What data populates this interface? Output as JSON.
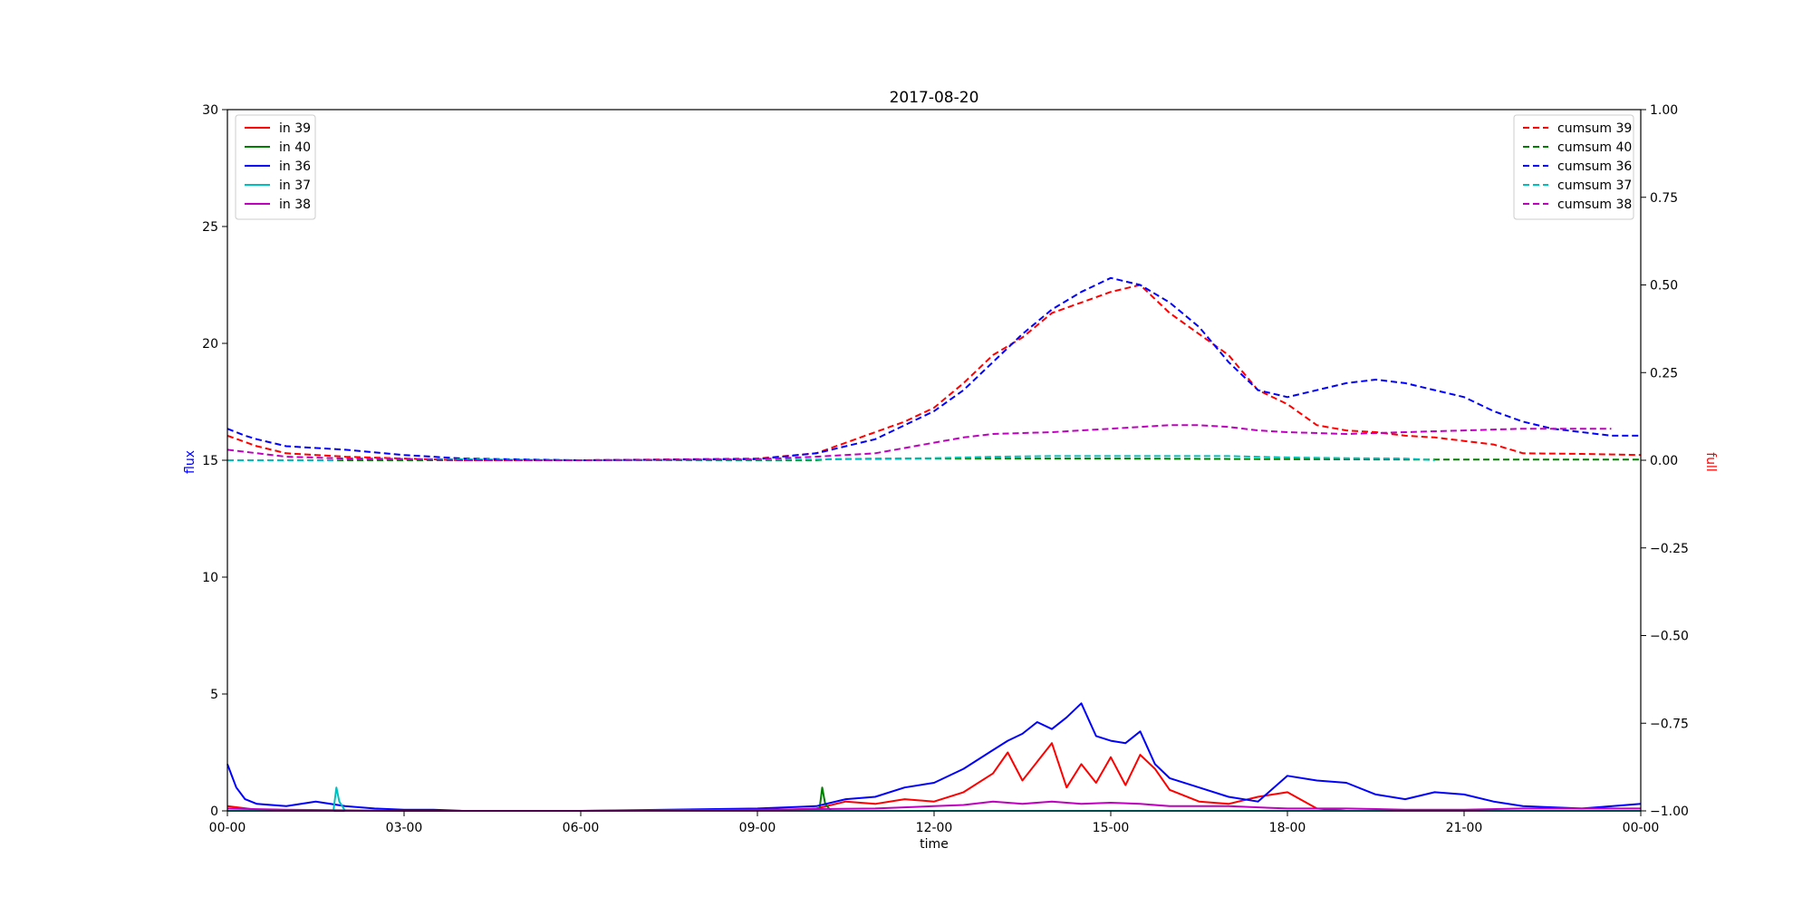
{
  "chart_data": {
    "type": "line",
    "title": "2017-08-20",
    "xlabel": "time",
    "ylabel_left": "flux",
    "ylabel_right": "full",
    "ylabel_left_color": "#0000ff",
    "ylabel_right_color": "#ff0000",
    "ylim_left": [
      0,
      30
    ],
    "ylim_right": [
      -1.0,
      1.0
    ],
    "x_tick_labels": [
      "00-00",
      "03-00",
      "06-00",
      "09-00",
      "12-00",
      "15-00",
      "18-00",
      "21-00",
      "00-00"
    ],
    "y_left_tick_labels": [
      "0",
      "5",
      "10",
      "15",
      "20",
      "25",
      "30"
    ],
    "y_right_tick_labels": [
      "−1.00",
      "−0.75",
      "−0.50",
      "−0.25",
      "0.00",
      "0.25",
      "0.50",
      "0.75",
      "1.00"
    ],
    "grid": false,
    "legend_left_placement": "upper-left",
    "legend_right_placement": "upper-right",
    "x_unit": "hours",
    "series_left_axis": [
      {
        "name": "in 39",
        "color": "#ff0000",
        "style": "solid",
        "x": [
          0,
          0.5,
          1,
          2,
          3,
          6,
          9,
          10,
          10.5,
          11,
          11.5,
          12,
          12.5,
          13,
          13.25,
          13.5,
          13.75,
          14,
          14.25,
          14.5,
          14.75,
          15,
          15.25,
          15.5,
          15.75,
          16,
          16.5,
          17,
          17.5,
          18,
          18.5,
          19,
          24
        ],
        "y": [
          0.2,
          0.05,
          0,
          0,
          0,
          0,
          0,
          0.1,
          0.4,
          0.3,
          0.5,
          0.4,
          0.8,
          1.6,
          2.5,
          1.3,
          2.1,
          2.9,
          1.0,
          2.0,
          1.2,
          2.3,
          1.1,
          2.4,
          1.8,
          0.9,
          0.4,
          0.3,
          0.6,
          0.8,
          0.1,
          0.0,
          0.0
        ]
      },
      {
        "name": "in 40",
        "color": "#008000",
        "style": "solid",
        "x": [
          0,
          10.05,
          10.1,
          10.15,
          10.25,
          24
        ],
        "y": [
          0,
          0,
          1.0,
          0.3,
          0,
          0
        ]
      },
      {
        "name": "in 36",
        "color": "#0000ff",
        "style": "solid",
        "x": [
          0,
          0.15,
          0.3,
          0.5,
          1,
          1.5,
          2,
          2.5,
          3,
          3.5,
          4,
          6,
          9,
          10,
          10.5,
          11,
          11.5,
          12,
          12.5,
          13,
          13.25,
          13.5,
          13.75,
          14,
          14.25,
          14.5,
          14.75,
          15,
          15.25,
          15.5,
          15.75,
          16,
          16.5,
          17,
          17.5,
          18,
          18.5,
          19,
          19.5,
          20,
          20.5,
          21,
          21.5,
          22,
          23,
          24
        ],
        "y": [
          2.0,
          1.0,
          0.5,
          0.3,
          0.2,
          0.4,
          0.2,
          0.1,
          0.05,
          0.05,
          0.0,
          0.0,
          0.1,
          0.2,
          0.5,
          0.6,
          1.0,
          1.2,
          1.8,
          2.6,
          3.0,
          3.3,
          3.8,
          3.5,
          4.0,
          4.6,
          3.2,
          3.0,
          2.9,
          3.4,
          2.0,
          1.4,
          1.0,
          0.6,
          0.4,
          1.5,
          1.3,
          1.2,
          0.7,
          0.5,
          0.8,
          0.7,
          0.4,
          0.2,
          0.1,
          0.3
        ]
      },
      {
        "name": "in 37",
        "color": "#00bfbf",
        "style": "solid",
        "x": [
          0,
          1.8,
          1.85,
          1.9,
          2.0,
          24
        ],
        "y": [
          0,
          0,
          1.0,
          0.4,
          0,
          0
        ]
      },
      {
        "name": "in 38",
        "color": "#bf00bf",
        "style": "solid",
        "x": [
          0,
          1,
          3,
          6,
          9,
          11,
          12,
          12.5,
          13,
          13.5,
          14,
          14.5,
          15,
          15.5,
          16,
          17,
          18,
          19,
          20,
          21,
          22,
          23,
          24
        ],
        "y": [
          0.1,
          0.05,
          0,
          0,
          0.05,
          0.1,
          0.2,
          0.25,
          0.4,
          0.3,
          0.4,
          0.3,
          0.35,
          0.3,
          0.2,
          0.2,
          0.1,
          0.1,
          0.05,
          0.05,
          0.1,
          0.1,
          0.1
        ]
      }
    ],
    "series_right_axis": [
      {
        "name": "cumsum 39",
        "color": "#ff0000",
        "style": "dashed",
        "x": [
          0,
          0.5,
          1,
          2,
          3,
          4,
          6,
          9,
          10,
          11,
          11.5,
          12,
          12.5,
          13,
          13.5,
          14,
          14.5,
          15,
          15.5,
          16,
          16.5,
          17,
          17.5,
          18,
          18.5,
          19,
          19.5,
          20,
          20.5,
          21,
          21.5,
          22,
          23,
          24
        ],
        "y": [
          0.07,
          0.04,
          0.02,
          0.01,
          0.005,
          0.0,
          0.0,
          0.005,
          0.02,
          0.08,
          0.11,
          0.15,
          0.22,
          0.3,
          0.35,
          0.42,
          0.45,
          0.48,
          0.5,
          0.42,
          0.36,
          0.3,
          0.2,
          0.16,
          0.1,
          0.085,
          0.08,
          0.07,
          0.065,
          0.055,
          0.045,
          0.02,
          0.018,
          0.015
        ]
      },
      {
        "name": "cumsum 40",
        "color": "#008000",
        "style": "dashed",
        "x": [
          0,
          10,
          10.2,
          12,
          15,
          18,
          20,
          24
        ],
        "y": [
          0,
          0,
          0.003,
          0.005,
          0.005,
          0.003,
          0.002,
          0.002
        ]
      },
      {
        "name": "cumsum 36",
        "color": "#0000ff",
        "style": "dashed",
        "x": [
          0,
          0.3,
          0.5,
          1,
          2,
          3,
          4,
          6,
          9,
          10,
          11,
          11.5,
          12,
          12.5,
          13,
          13.5,
          14,
          14.5,
          15,
          15.5,
          16,
          16.5,
          17,
          17.5,
          18,
          18.5,
          19,
          19.5,
          20,
          20.5,
          21,
          21.5,
          22,
          22.5,
          23,
          23.5,
          24
        ],
        "y": [
          0.09,
          0.07,
          0.06,
          0.04,
          0.03,
          0.015,
          0.005,
          0.0,
          0.003,
          0.02,
          0.06,
          0.1,
          0.14,
          0.2,
          0.28,
          0.36,
          0.43,
          0.48,
          0.52,
          0.5,
          0.45,
          0.38,
          0.28,
          0.2,
          0.18,
          0.2,
          0.22,
          0.23,
          0.22,
          0.2,
          0.18,
          0.14,
          0.11,
          0.09,
          0.08,
          0.07,
          0.07
        ]
      },
      {
        "name": "cumsum 37",
        "color": "#00bfbf",
        "style": "dashed",
        "x": [
          0,
          1.8,
          2,
          6,
          10,
          11,
          12,
          13,
          14,
          15,
          16,
          17,
          18,
          19,
          20,
          20.5
        ],
        "y": [
          0,
          0,
          0.005,
          0.0,
          0.002,
          0.005,
          0.006,
          0.01,
          0.012,
          0.012,
          0.012,
          0.012,
          0.008,
          0.006,
          0.005,
          0.0
        ]
      },
      {
        "name": "cumsum 38",
        "color": "#bf00bf",
        "style": "dashed",
        "x": [
          0,
          1,
          2,
          3,
          4,
          6,
          9,
          10,
          11,
          11.5,
          12,
          12.5,
          13,
          14,
          15,
          15.5,
          16,
          16.5,
          17,
          17.5,
          18,
          19,
          20,
          21,
          22,
          23,
          23.5
        ],
        "y": [
          0.03,
          0.01,
          0.005,
          0.003,
          0.0,
          0.0,
          0.003,
          0.01,
          0.02,
          0.035,
          0.05,
          0.065,
          0.075,
          0.08,
          0.09,
          0.095,
          0.1,
          0.1,
          0.095,
          0.085,
          0.08,
          0.075,
          0.08,
          0.085,
          0.09,
          0.09,
          0.09
        ]
      }
    ]
  }
}
